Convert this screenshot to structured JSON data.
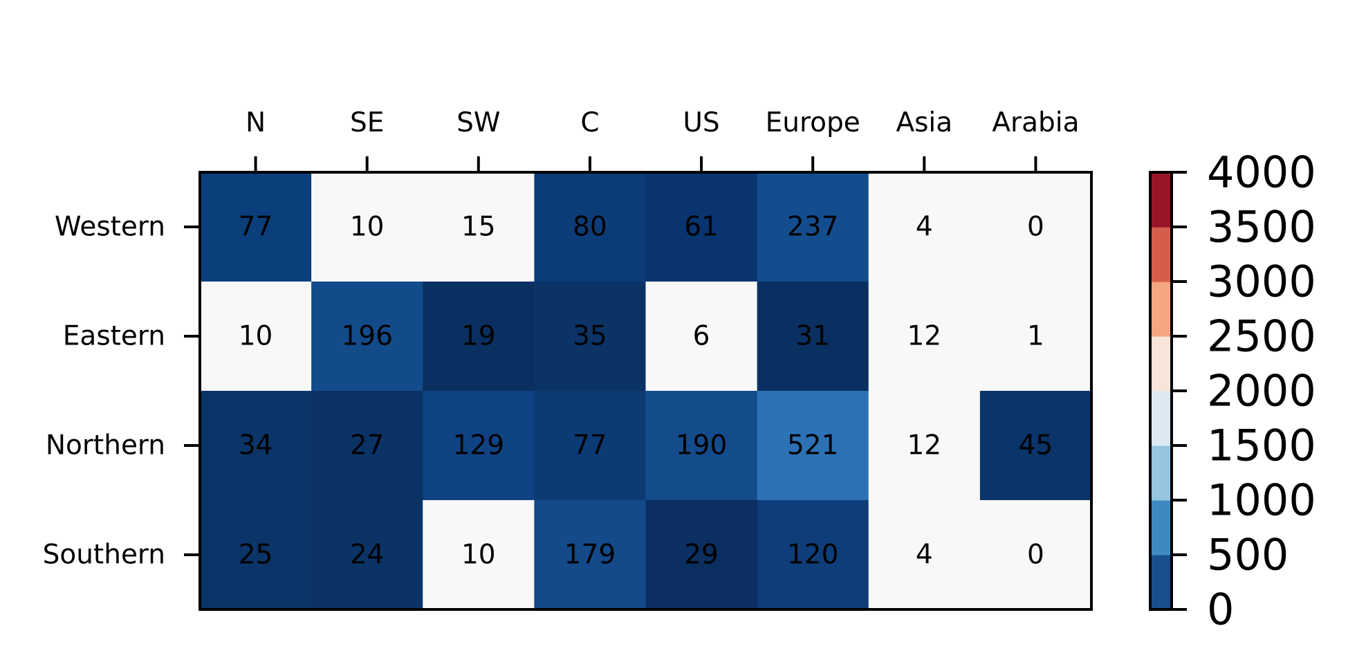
{
  "chart_data": {
    "type": "heatmap",
    "title": "",
    "xlabel": "",
    "ylabel": "",
    "x_categories": [
      "N",
      "SE",
      "SW",
      "C",
      "US",
      "Europe",
      "Asia",
      "Arabia"
    ],
    "y_categories": [
      "Western",
      "Eastern",
      "Northern",
      "Southern"
    ],
    "values": [
      [
        77,
        10,
        15,
        80,
        61,
        237,
        4,
        0
      ],
      [
        10,
        196,
        19,
        35,
        6,
        31,
        12,
        1
      ],
      [
        34,
        27,
        129,
        77,
        190,
        521,
        12,
        45
      ],
      [
        25,
        24,
        10,
        179,
        29,
        120,
        4,
        0
      ]
    ],
    "cell_colors": [
      [
        "#0b3f7c",
        "#f8f8f8",
        "#f8f8f8",
        "#0c3c77",
        "#0a3470",
        "#144d8e",
        "#f8f8f8",
        "#f8f8f8"
      ],
      [
        "#f8f8f8",
        "#134b8a",
        "#0a3062",
        "#0b3366",
        "#f8f8f8",
        "#0a3062",
        "#f8f8f8",
        "#f8f8f8"
      ],
      [
        "#0b3468",
        "#0b3366",
        "#0f4283",
        "#0c3a75",
        "#144b8b",
        "#2c72b5",
        "#f8f8f8",
        "#0b3468"
      ],
      [
        "#0b3468",
        "#0b3366",
        "#f8f8f8",
        "#14498a",
        "#0a2f60",
        "#0f3d79",
        "#f8f8f8",
        "#f8f8f8"
      ]
    ],
    "colorbar": {
      "ticks": [
        "0",
        "500",
        "1000",
        "1500",
        "2000",
        "2500",
        "3000",
        "3500",
        "4000"
      ],
      "range": [
        0,
        4000
      ],
      "band_colors": [
        "#1a4f8f",
        "#3f89c2",
        "#95c5df",
        "#dce9f1",
        "#f8e5da",
        "#f4a781",
        "#d45d4c",
        "#981528"
      ]
    },
    "x_ticks_position": "top",
    "grid": false,
    "legend": "colorbar-right"
  }
}
